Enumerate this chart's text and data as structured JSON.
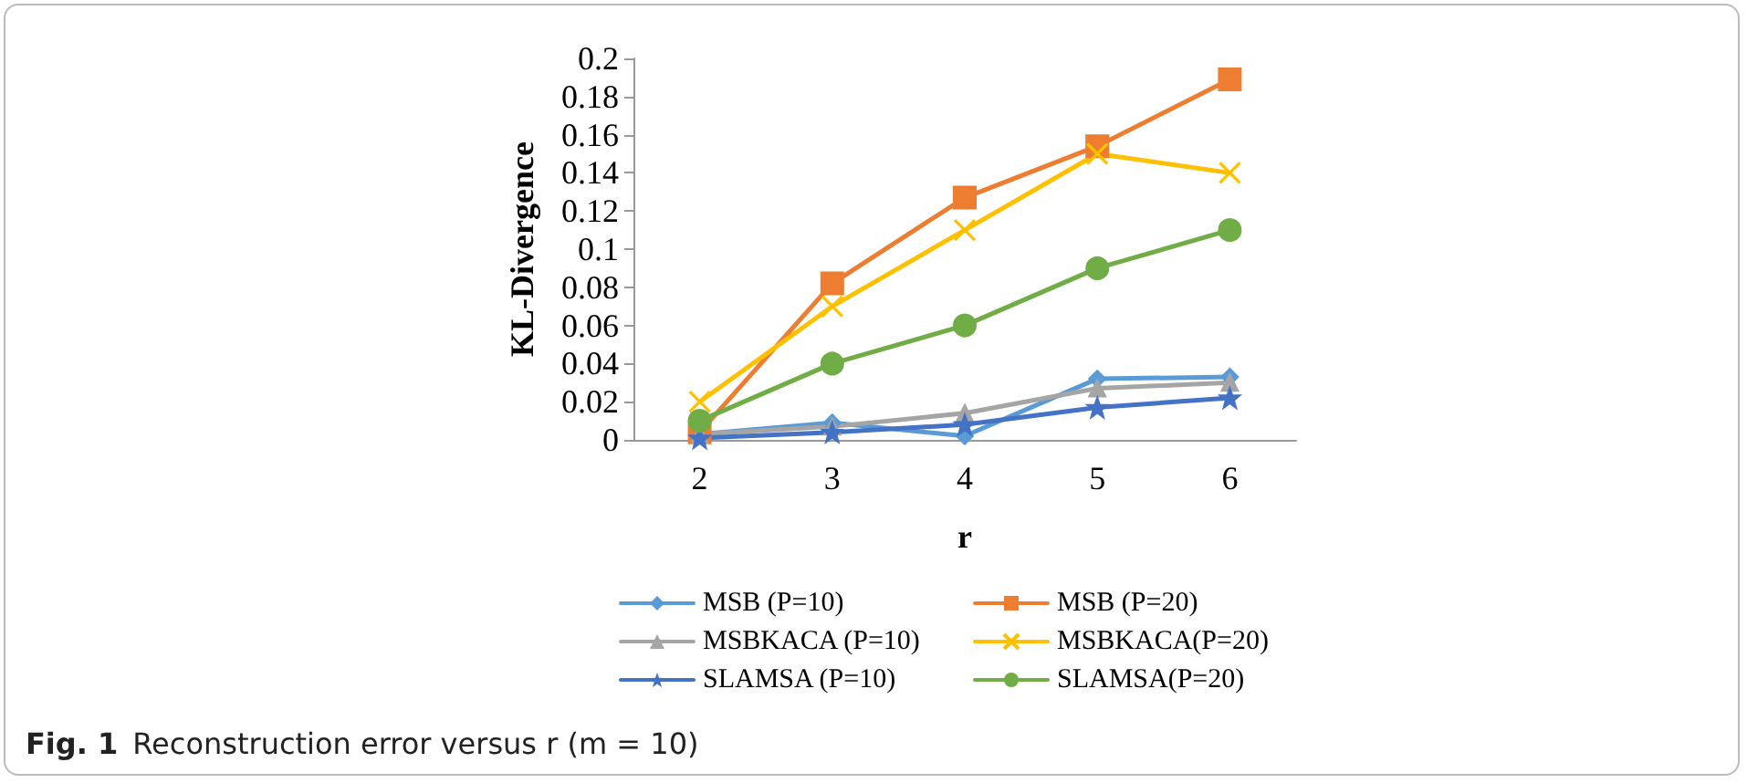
{
  "chart_data": {
    "type": "line",
    "xlabel": "r",
    "ylabel": "KL-Divergence",
    "categories": [
      "2",
      "3",
      "4",
      "5",
      "6"
    ],
    "series": [
      {
        "name": "MSB (P=10)",
        "color": "#5b9bd5",
        "marker": "diamond",
        "values": [
          0.003,
          0.009,
          0.002,
          0.032,
          0.033
        ]
      },
      {
        "name": "MSB (P=20)",
        "color": "#ed7d31",
        "marker": "square",
        "values": [
          0.004,
          0.082,
          0.127,
          0.154,
          0.189
        ]
      },
      {
        "name": "MSBKACA (P=10)",
        "color": "#a5a5a5",
        "marker": "triangle",
        "values": [
          0.003,
          0.007,
          0.014,
          0.027,
          0.03
        ]
      },
      {
        "name": "MSBKACA(P=20)",
        "color": "#ffc000",
        "marker": "cross",
        "values": [
          0.02,
          0.07,
          0.11,
          0.15,
          0.14
        ]
      },
      {
        "name": "SLAMSA (P=10)",
        "color": "#4472c4",
        "marker": "star",
        "values": [
          0.001,
          0.004,
          0.008,
          0.017,
          0.022
        ]
      },
      {
        "name": "SLAMSA(P=20)",
        "color": "#70ad47",
        "marker": "circle",
        "values": [
          0.01,
          0.04,
          0.06,
          0.09,
          0.11
        ]
      }
    ],
    "ylim": [
      0,
      0.2
    ],
    "yticks": [
      0,
      0.02,
      0.04,
      0.06,
      0.08,
      0.1,
      0.12,
      0.14,
      0.16,
      0.18,
      0.2
    ],
    "grid": false,
    "legend": "bottom",
    "line_style": "solid",
    "annotations": [
      "Fig. 1",
      "Reconstruction error versus r (m = 10)"
    ]
  }
}
